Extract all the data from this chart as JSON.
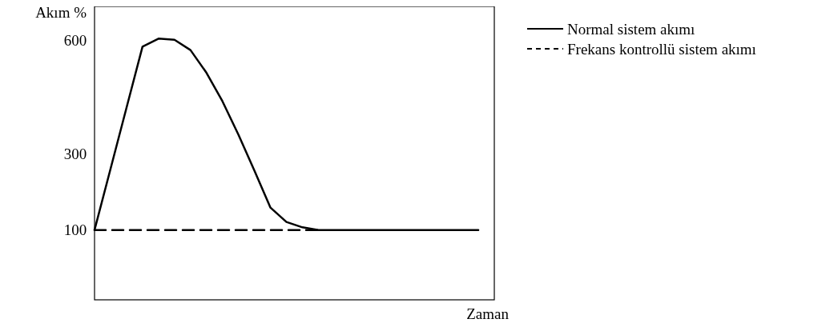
{
  "chart_data": {
    "type": "line",
    "ylabel": "Akım %",
    "xlabel": "Zaman",
    "categories": [
      null,
      null,
      null,
      null,
      null,
      null,
      null,
      null,
      null,
      null,
      null,
      null,
      null,
      null,
      null,
      null,
      null,
      null,
      null,
      null,
      null,
      null,
      null,
      null,
      null
    ],
    "ylim": [
      -84,
      689
    ],
    "yticks": [
      100,
      300,
      600
    ],
    "legend": "top right",
    "marker": "none",
    "series": [
      {
        "name": "Normal sistem akımı",
        "color": "#000000",
        "line_style": "solid",
        "values": [
          100,
          261,
          422,
          583,
          604,
          601,
          574,
          514,
          439,
          351,
          256,
          159,
          121,
          107,
          100,
          100,
          100,
          100,
          100,
          100,
          100,
          100,
          100,
          100,
          100
        ]
      },
      {
        "name": "Frekans kontrollü sistem akımı",
        "color": "#000000",
        "line_style": "dashed",
        "values": [
          100,
          100,
          100,
          100,
          100,
          100,
          100,
          100,
          100,
          100,
          100,
          100,
          100,
          100,
          100,
          null,
          null,
          null,
          null,
          null,
          null,
          null,
          null,
          null,
          null
        ]
      }
    ]
  }
}
